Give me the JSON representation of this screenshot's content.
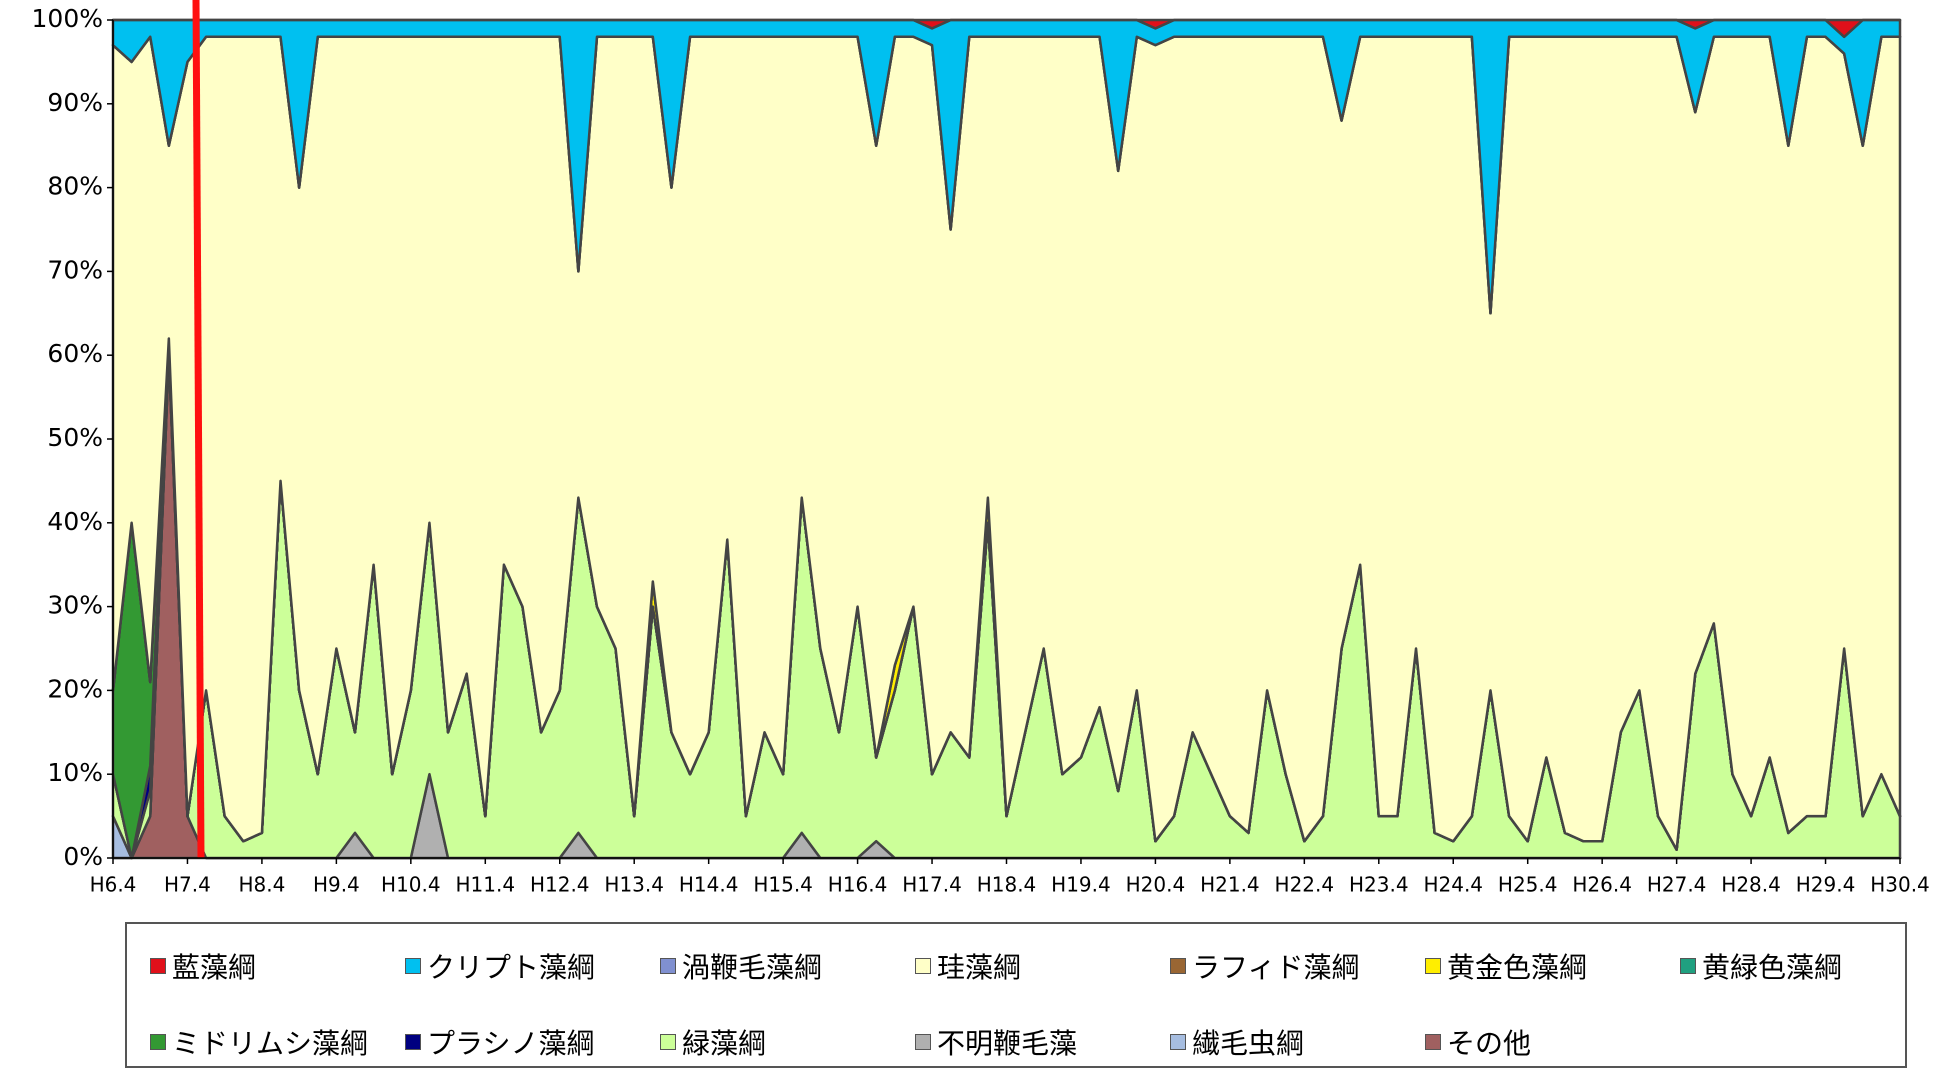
{
  "chart_data": {
    "type": "stacked-area-100",
    "categories": [
      "H6.4",
      null,
      null,
      null,
      "H7.4",
      null,
      null,
      null,
      "H8.4",
      null,
      null,
      null,
      "H9.4",
      null,
      null,
      null,
      "H10.4",
      null,
      null,
      null,
      "H11.4",
      null,
      null,
      null,
      "H12.4",
      null,
      null,
      null,
      "H13.4",
      null,
      null,
      null,
      "H14.4",
      null,
      null,
      null,
      "H15.4",
      null,
      null,
      null,
      "H16.4",
      null,
      null,
      null,
      "H17.4",
      null,
      null,
      null,
      "H18.4",
      null,
      null,
      null,
      "H19.4",
      null,
      null,
      null,
      "H20.4",
      null,
      null,
      null,
      "H21.4",
      null,
      null,
      null,
      "H22.4",
      null,
      null,
      null,
      "H23.4",
      null,
      null,
      null,
      "H24.4",
      null,
      null,
      null,
      "H25.4",
      null,
      null,
      null,
      "H26.4",
      null,
      null,
      null,
      "H27.4",
      null,
      null,
      null,
      "H28.4",
      null,
      null,
      null,
      "H29.4",
      null,
      null,
      null,
      "H30.4"
    ],
    "ylim": [
      0,
      100
    ],
    "yticks": [
      {
        "value": 0,
        "label": "0%"
      },
      {
        "value": 10,
        "label": "10%"
      },
      {
        "value": 20,
        "label": "20%"
      },
      {
        "value": 30,
        "label": "30%"
      },
      {
        "value": 40,
        "label": "40%"
      },
      {
        "value": 50,
        "label": "50%"
      },
      {
        "value": 60,
        "label": "60%"
      },
      {
        "value": 70,
        "label": "70%"
      },
      {
        "value": 80,
        "label": "80%"
      },
      {
        "value": 90,
        "label": "90%"
      },
      {
        "value": 100,
        "label": "100%"
      }
    ],
    "grid": false,
    "series": [
      {
        "name": "藍藻綱",
        "color": "#e0101a",
        "values": [
          0,
          0,
          0,
          0,
          0,
          0,
          0,
          0,
          0,
          0,
          0,
          0,
          0,
          0,
          0,
          0,
          0,
          0,
          0,
          0,
          0,
          0,
          0,
          0,
          0,
          0,
          0,
          0,
          0,
          0,
          0,
          0,
          0,
          0,
          0,
          0,
          0,
          0,
          0,
          0,
          0,
          0,
          0,
          0,
          1,
          0,
          0,
          0,
          0,
          0,
          0,
          0,
          0,
          0,
          0,
          0,
          1,
          0,
          0,
          0,
          0,
          0,
          0,
          0,
          0,
          0,
          0,
          0,
          0,
          0,
          0,
          0,
          0,
          0,
          0,
          0,
          0,
          0,
          0,
          0,
          0,
          0,
          0,
          0,
          0,
          1,
          0,
          0,
          0,
          0,
          0,
          0,
          0,
          2,
          0,
          0,
          0
        ]
      },
      {
        "name": "クリプト藻綱",
        "color": "#00c0f0",
        "values": [
          3,
          5,
          2,
          15,
          5,
          2,
          2,
          2,
          2,
          2,
          20,
          2,
          2,
          2,
          2,
          2,
          2,
          2,
          2,
          2,
          2,
          2,
          2,
          2,
          2,
          30,
          2,
          2,
          2,
          2,
          20,
          2,
          2,
          2,
          2,
          2,
          2,
          2,
          2,
          2,
          2,
          15,
          2,
          2,
          2,
          25,
          2,
          2,
          2,
          2,
          2,
          2,
          2,
          2,
          18,
          2,
          2,
          2,
          2,
          2,
          2,
          2,
          2,
          2,
          2,
          2,
          12,
          2,
          2,
          2,
          2,
          2,
          2,
          2,
          35,
          2,
          2,
          2,
          2,
          2,
          2,
          2,
          2,
          2,
          2,
          10,
          2,
          2,
          2,
          2,
          15,
          2,
          2,
          2,
          15,
          2,
          2
        ]
      },
      {
        "name": "渦鞭毛藻綱",
        "color": "#8090d0",
        "values": [
          0,
          0,
          0,
          0,
          0,
          0,
          0,
          0,
          0,
          0,
          0,
          0,
          0,
          0,
          0,
          0,
          0,
          0,
          0,
          0,
          0,
          0,
          0,
          0,
          0,
          0,
          0,
          0,
          0,
          0,
          0,
          0,
          0,
          0,
          0,
          0,
          0,
          0,
          0,
          0,
          0,
          0,
          0,
          0,
          0,
          0,
          0,
          0,
          0,
          0,
          0,
          0,
          0,
          0,
          0,
          0,
          0,
          0,
          0,
          0,
          0,
          0,
          0,
          0,
          0,
          0,
          0,
          0,
          0,
          0,
          0,
          0,
          0,
          0,
          0,
          0,
          0,
          0,
          0,
          0,
          0,
          0,
          0,
          0,
          0,
          0,
          0,
          0,
          0,
          0,
          0,
          0,
          0,
          0,
          0,
          0,
          0
        ]
      },
      {
        "name": "珪藻綱",
        "color": "#ffffc8",
        "values": [
          77,
          55,
          77,
          23,
          90,
          78,
          93,
          96,
          95,
          53,
          60,
          88,
          73,
          83,
          63,
          88,
          78,
          58,
          83,
          76,
          93,
          63,
          68,
          83,
          78,
          27,
          68,
          73,
          93,
          65,
          65,
          88,
          83,
          60,
          93,
          83,
          88,
          55,
          73,
          83,
          68,
          73,
          75,
          68,
          87,
          60,
          86,
          55,
          93,
          83,
          73,
          88,
          86,
          80,
          74,
          78,
          95,
          93,
          83,
          88,
          93,
          95,
          78,
          88,
          96,
          93,
          63,
          63,
          93,
          93,
          73,
          95,
          96,
          93,
          45,
          93,
          96,
          86,
          95,
          96,
          96,
          83,
          78,
          93,
          97,
          67,
          70,
          88,
          93,
          86,
          82,
          93,
          93,
          71,
          80,
          88,
          93
        ]
      },
      {
        "name": "ラフィド藻綱",
        "color": "#996633",
        "values": [
          0,
          0,
          0,
          0,
          0,
          0,
          0,
          0,
          0,
          0,
          0,
          0,
          0,
          0,
          0,
          0,
          0,
          0,
          0,
          0,
          0,
          0,
          0,
          0,
          0,
          0,
          0,
          0,
          0,
          0,
          0,
          0,
          0,
          0,
          0,
          0,
          0,
          0,
          0,
          0,
          0,
          0,
          0,
          0,
          0,
          0,
          0,
          0,
          0,
          0,
          0,
          0,
          0,
          0,
          0,
          0,
          0,
          0,
          0,
          0,
          0,
          0,
          0,
          0,
          0,
          0,
          0,
          0,
          0,
          0,
          0,
          0,
          0,
          0,
          0,
          0,
          0,
          0,
          0,
          0,
          0,
          0,
          0,
          0,
          0,
          0,
          0,
          0,
          0,
          0,
          0,
          0,
          0,
          0,
          0,
          0,
          0
        ]
      },
      {
        "name": "黄金色藻綱",
        "color": "#ffee00",
        "values": [
          0,
          0,
          0,
          0,
          0,
          0,
          0,
          0,
          0,
          0,
          0,
          0,
          0,
          0,
          0,
          0,
          0,
          0,
          0,
          0,
          0,
          0,
          0,
          0,
          0,
          0,
          0,
          0,
          0,
          3,
          0,
          0,
          0,
          0,
          0,
          0,
          0,
          0,
          0,
          0,
          0,
          0,
          3,
          0,
          0,
          0,
          0,
          3,
          0,
          0,
          0,
          0,
          0,
          0,
          0,
          0,
          0,
          0,
          0,
          0,
          0,
          0,
          0,
          0,
          0,
          0,
          0,
          0,
          0,
          0,
          0,
          0,
          0,
          0,
          0,
          0,
          0,
          0,
          0,
          0,
          0,
          0,
          0,
          0,
          0,
          0,
          0,
          0,
          0,
          0,
          0,
          0,
          0,
          0,
          0,
          0,
          0
        ]
      },
      {
        "name": "黄緑色藻綱",
        "color": "#20a080",
        "values": [
          0,
          0,
          0,
          0,
          0,
          0,
          0,
          0,
          0,
          0,
          0,
          0,
          0,
          0,
          0,
          0,
          0,
          0,
          0,
          0,
          0,
          0,
          0,
          0,
          0,
          0,
          0,
          0,
          0,
          0,
          0,
          0,
          0,
          0,
          0,
          0,
          0,
          0,
          0,
          0,
          0,
          0,
          0,
          0,
          0,
          0,
          0,
          0,
          0,
          0,
          0,
          0,
          0,
          0,
          0,
          0,
          0,
          0,
          0,
          0,
          0,
          0,
          0,
          0,
          0,
          0,
          0,
          0,
          0,
          0,
          0,
          0,
          0,
          0,
          0,
          0,
          0,
          0,
          0,
          0,
          0,
          0,
          0,
          0,
          0,
          0,
          0,
          0,
          0,
          0,
          0,
          0,
          0,
          0,
          0,
          0,
          0
        ]
      },
      {
        "name": "ミドリムシ藻綱",
        "color": "#339933",
        "values": [
          10,
          40,
          10,
          0,
          0,
          0,
          0,
          0,
          0,
          0,
          0,
          0,
          0,
          0,
          0,
          0,
          0,
          0,
          0,
          0,
          0,
          0,
          0,
          0,
          0,
          0,
          0,
          0,
          0,
          0,
          0,
          0,
          0,
          0,
          0,
          0,
          0,
          0,
          0,
          0,
          0,
          0,
          0,
          0,
          0,
          0,
          0,
          0,
          0,
          0,
          0,
          0,
          0,
          0,
          0,
          0,
          0,
          0,
          0,
          0,
          0,
          0,
          0,
          0,
          0,
          0,
          0,
          0,
          0,
          0,
          0,
          0,
          0,
          0,
          0,
          0,
          0,
          0,
          0,
          0,
          0,
          0,
          0,
          0,
          0,
          0,
          0,
          0,
          0,
          0,
          0,
          0,
          0,
          0,
          0,
          0,
          0
        ]
      },
      {
        "name": "プラシノ藻綱",
        "color": "#000080",
        "values": [
          0,
          0,
          3,
          0,
          0,
          0,
          0,
          0,
          0,
          0,
          0,
          0,
          0,
          0,
          0,
          0,
          0,
          0,
          0,
          0,
          0,
          0,
          0,
          0,
          0,
          0,
          0,
          0,
          0,
          0,
          0,
          0,
          0,
          0,
          0,
          0,
          0,
          0,
          0,
          0,
          0,
          0,
          0,
          0,
          0,
          0,
          0,
          0,
          0,
          0,
          0,
          0,
          0,
          0,
          0,
          0,
          0,
          0,
          0,
          0,
          0,
          0,
          0,
          0,
          0,
          0,
          0,
          0,
          0,
          0,
          0,
          0,
          0,
          0,
          0,
          0,
          0,
          0,
          0,
          0,
          0,
          0,
          0,
          0,
          0,
          0,
          0,
          0,
          0,
          0,
          0,
          0,
          0,
          0,
          0,
          0,
          0
        ]
      },
      {
        "name": "緑藻綱",
        "color": "#ccff99",
        "values": [
          5,
          0,
          3,
          2,
          0,
          20,
          5,
          2,
          3,
          45,
          20,
          10,
          25,
          12,
          35,
          10,
          20,
          30,
          15,
          22,
          5,
          35,
          30,
          15,
          20,
          40,
          30,
          25,
          5,
          30,
          15,
          10,
          15,
          38,
          5,
          15,
          10,
          40,
          25,
          15,
          30,
          10,
          20,
          30,
          10,
          15,
          12,
          40,
          5,
          15,
          25,
          10,
          12,
          18,
          8,
          20,
          2,
          5,
          15,
          10,
          5,
          3,
          20,
          10,
          2,
          5,
          25,
          35,
          5,
          5,
          25,
          3,
          2,
          5,
          20,
          5,
          2,
          12,
          3,
          2,
          2,
          15,
          20,
          5,
          1,
          22,
          28,
          10,
          5,
          12,
          3,
          5,
          5,
          25,
          5,
          10,
          5
        ]
      },
      {
        "name": "不明鞭毛藻",
        "color": "#b0b0b0",
        "values": [
          0,
          0,
          0,
          0,
          0,
          0,
          0,
          0,
          0,
          0,
          0,
          0,
          0,
          3,
          0,
          0,
          0,
          10,
          0,
          0,
          0,
          0,
          0,
          0,
          0,
          3,
          0,
          0,
          0,
          0,
          0,
          0,
          0,
          0,
          0,
          0,
          0,
          3,
          0,
          0,
          0,
          2,
          0,
          0,
          0,
          0,
          0,
          0,
          0,
          0,
          0,
          0,
          0,
          0,
          0,
          0,
          0,
          0,
          0,
          0,
          0,
          0,
          0,
          0,
          0,
          0,
          0,
          0,
          0,
          0,
          0,
          0,
          0,
          0,
          0,
          0,
          0,
          0,
          0,
          0,
          0,
          0,
          0,
          0,
          0,
          0,
          0,
          0,
          0,
          0,
          0,
          0,
          0,
          0,
          0,
          0,
          0
        ]
      },
      {
        "name": "繊毛虫綱",
        "color": "#a6bde0",
        "values": [
          5,
          0,
          0,
          0,
          0,
          0,
          0,
          0,
          0,
          0,
          0,
          0,
          0,
          0,
          0,
          0,
          0,
          0,
          0,
          0,
          0,
          0,
          0,
          0,
          0,
          0,
          0,
          0,
          0,
          0,
          0,
          0,
          0,
          0,
          0,
          0,
          0,
          0,
          0,
          0,
          0,
          0,
          0,
          0,
          0,
          0,
          0,
          0,
          0,
          0,
          0,
          0,
          0,
          0,
          0,
          0,
          0,
          0,
          0,
          0,
          0,
          0,
          0,
          0,
          0,
          0,
          0,
          0,
          0,
          0,
          0,
          0,
          0,
          0,
          0,
          0,
          0,
          0,
          0,
          0,
          0,
          0,
          0,
          0,
          0,
          0,
          0,
          0,
          0,
          0,
          0,
          0,
          0,
          0,
          0,
          0,
          0
        ]
      },
      {
        "name": "その他",
        "color": "#a06060",
        "values": [
          0,
          0,
          5,
          60,
          5,
          0,
          0,
          0,
          0,
          0,
          0,
          0,
          0,
          0,
          0,
          0,
          0,
          0,
          0,
          0,
          0,
          0,
          0,
          0,
          0,
          0,
          0,
          0,
          0,
          0,
          0,
          0,
          0,
          0,
          0,
          0,
          0,
          0,
          0,
          0,
          0,
          0,
          0,
          0,
          0,
          0,
          0,
          0,
          0,
          0,
          0,
          0,
          0,
          0,
          0,
          0,
          0,
          0,
          0,
          0,
          0,
          0,
          0,
          0,
          0,
          0,
          0,
          0,
          0,
          0,
          0,
          0,
          0,
          0,
          0,
          0,
          0,
          0,
          0,
          0,
          0,
          0,
          0,
          0,
          0,
          0,
          0,
          0,
          0,
          0,
          0,
          0,
          0,
          0,
          0,
          0,
          0
        ]
      }
    ]
  }
}
